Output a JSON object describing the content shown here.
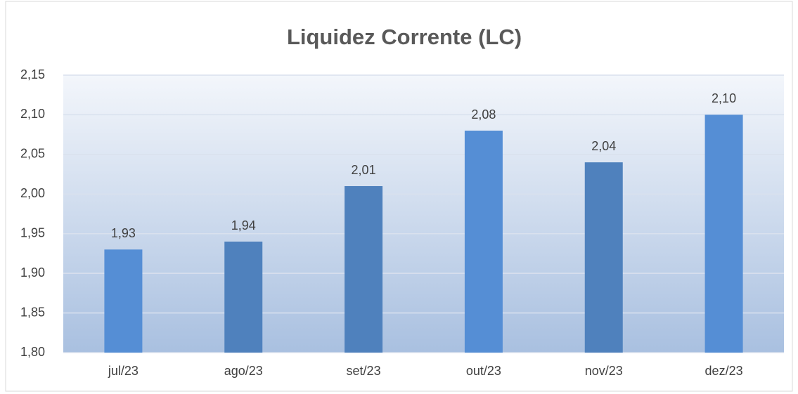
{
  "chart_data": {
    "type": "bar",
    "title": "Liquidez Corrente (LC)",
    "categories": [
      "jul/23",
      "ago/23",
      "set/23",
      "out/23",
      "nov/23",
      "dez/23"
    ],
    "values": [
      1.93,
      1.94,
      2.01,
      2.08,
      2.04,
      2.1
    ],
    "value_labels": [
      "1,93",
      "1,94",
      "2,01",
      "2,08",
      "2,04",
      "2,10"
    ],
    "colors": [
      "#558ed5",
      "#4f81bd",
      "#4f81bd",
      "#558ed5",
      "#4f81bd",
      "#558ed5"
    ],
    "ylim": [
      1.8,
      2.15
    ],
    "yticks": [
      {
        "value": 1.8,
        "label": "1,80"
      },
      {
        "value": 1.85,
        "label": "1,85"
      },
      {
        "value": 1.9,
        "label": "1,90"
      },
      {
        "value": 1.95,
        "label": "1,95"
      },
      {
        "value": 2.0,
        "label": "2,00"
      },
      {
        "value": 2.05,
        "label": "2,05"
      },
      {
        "value": 2.1,
        "label": "2,10"
      },
      {
        "value": 2.15,
        "label": "2,15"
      }
    ],
    "grid": true
  }
}
